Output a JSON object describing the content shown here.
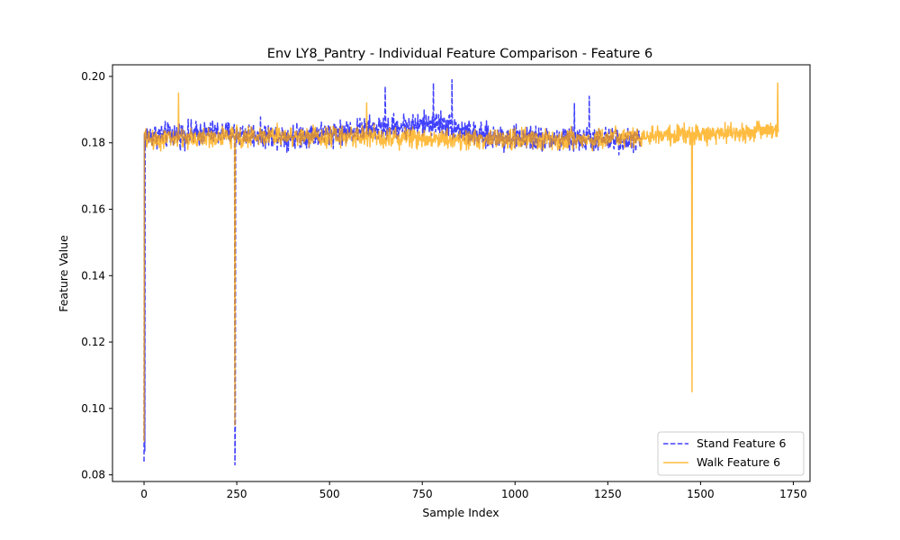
{
  "chart_data": {
    "type": "line",
    "title": "Env LY8_Pantry - Individual Feature Comparison - Feature 6",
    "xlabel": "Sample Index",
    "ylabel": "Feature Value",
    "xlim": [
      -85,
      1795
    ],
    "ylim": [
      0.078,
      0.2035
    ],
    "xticks": [
      0,
      250,
      500,
      750,
      1000,
      1250,
      1500,
      1750
    ],
    "yticks": [
      0.08,
      0.1,
      0.12,
      0.14,
      0.16,
      0.18,
      0.2
    ],
    "ytick_labels": [
      "0.08",
      "0.10",
      "0.12",
      "0.14",
      "0.16",
      "0.18",
      "0.20"
    ],
    "grid": false,
    "legend_position": "lower-right",
    "series": [
      {
        "name": "Stand Feature 6",
        "color": "#0000ff",
        "opacity": 0.75,
        "linestyle": "dashed",
        "x_range": [
          0,
          1340
        ],
        "baseline_profile": [
          [
            0,
            0.182
          ],
          [
            200,
            0.183
          ],
          [
            400,
            0.182
          ],
          [
            600,
            0.184
          ],
          [
            700,
            0.185
          ],
          [
            800,
            0.186
          ],
          [
            900,
            0.182
          ],
          [
            1100,
            0.181
          ],
          [
            1340,
            0.181
          ]
        ],
        "noise_amplitude": 0.0055,
        "dips": [
          [
            0,
            0.084
          ],
          [
            2,
            0.087
          ],
          [
            245,
            0.083
          ],
          [
            246,
            0.094
          ]
        ],
        "peaks": [
          [
            650,
            0.197
          ],
          [
            780,
            0.198
          ],
          [
            830,
            0.199
          ],
          [
            1160,
            0.192
          ],
          [
            1200,
            0.194
          ]
        ]
      },
      {
        "name": "Walk Feature 6",
        "color": "#ffa500",
        "opacity": 0.75,
        "linestyle": "solid",
        "x_range": [
          0,
          1710
        ],
        "baseline_profile": [
          [
            0,
            0.181
          ],
          [
            300,
            0.182
          ],
          [
            600,
            0.182
          ],
          [
            900,
            0.181
          ],
          [
            1200,
            0.181
          ],
          [
            1400,
            0.182
          ],
          [
            1600,
            0.183
          ],
          [
            1710,
            0.184
          ]
        ],
        "noise_amplitude": 0.0045,
        "dips": [
          [
            0,
            0.09
          ],
          [
            245,
            0.095
          ],
          [
            1477,
            0.105
          ]
        ],
        "peaks": [
          [
            93,
            0.195
          ],
          [
            600,
            0.192
          ],
          [
            1708,
            0.198
          ]
        ]
      }
    ]
  }
}
